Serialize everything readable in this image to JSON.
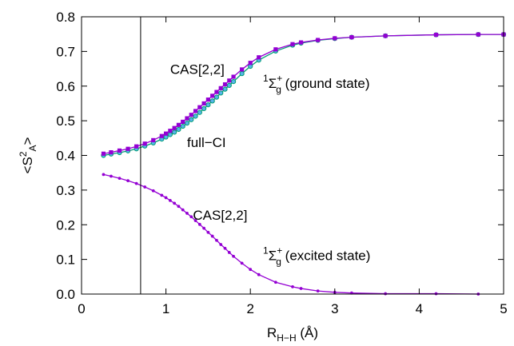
{
  "chart_data": {
    "type": "line",
    "xlabel": {
      "main": "R",
      "sub": "H−H",
      "unit": " (Å)"
    },
    "ylabel": {
      "open": "<S",
      "sup": "2",
      "sub": "A",
      "close": ">"
    },
    "xlim": [
      0,
      5
    ],
    "ylim": [
      0,
      0.8
    ],
    "xticks": [
      0,
      1,
      2,
      3,
      4,
      5
    ],
    "xtick_labels": [
      "0",
      "1",
      "2",
      "3",
      "4",
      "5"
    ],
    "yticks": [
      0,
      0.1,
      0.2,
      0.3,
      0.4,
      0.5,
      0.6,
      0.7,
      0.8
    ],
    "ytick_labels": [
      "0.0",
      "0.1",
      "0.2",
      "0.3",
      "0.4",
      "0.5",
      "0.6",
      "0.7",
      "0.8"
    ],
    "grid": false,
    "vertical_line_x": 0.7,
    "colors": {
      "cas": "#9400d3",
      "fullci": "#009e73",
      "fullci_marker": "#56b4e9"
    },
    "annotations": [
      {
        "id": "cas-ground",
        "text": "CAS[2,2]",
        "x": 1.05,
        "y": 0.635
      },
      {
        "id": "fullci-ground",
        "text": "full−CI",
        "x": 1.25,
        "y": 0.424
      },
      {
        "id": "cas-excited",
        "text": "CAS[2,2]",
        "x": 1.32,
        "y": 0.214
      },
      {
        "id": "ground-state",
        "pre": "1",
        "sym": "Σ",
        "sup": "+",
        "sub": "g",
        "text": " (ground state)",
        "x": 2.15,
        "y": 0.595
      },
      {
        "id": "excited-state",
        "pre": "1",
        "sym": "Σ",
        "sup": "+",
        "sub": "g",
        "text": " (excited state)",
        "x": 2.15,
        "y": 0.098
      }
    ],
    "series": [
      {
        "id": "cas-ground",
        "marker": "square",
        "x": [
          0.26,
          0.35,
          0.45,
          0.55,
          0.65,
          0.75,
          0.85,
          0.95,
          1.0,
          1.05,
          1.1,
          1.15,
          1.2,
          1.25,
          1.3,
          1.35,
          1.4,
          1.45,
          1.5,
          1.55,
          1.6,
          1.65,
          1.7,
          1.75,
          1.8,
          1.9,
          2.0,
          2.1,
          2.3,
          2.5,
          2.6,
          2.8,
          3.0,
          3.2,
          3.6,
          4.2,
          4.7,
          5.0
        ],
        "y": [
          0.405,
          0.409,
          0.414,
          0.419,
          0.426,
          0.434,
          0.444,
          0.456,
          0.463,
          0.471,
          0.479,
          0.488,
          0.497,
          0.507,
          0.517,
          0.528,
          0.539,
          0.55,
          0.561,
          0.572,
          0.583,
          0.594,
          0.605,
          0.616,
          0.627,
          0.648,
          0.667,
          0.683,
          0.706,
          0.721,
          0.726,
          0.733,
          0.738,
          0.741,
          0.745,
          0.748,
          0.749,
          0.749
        ]
      },
      {
        "id": "fullci-ground",
        "marker": "circle",
        "x": [
          0.26,
          0.35,
          0.45,
          0.55,
          0.65,
          0.75,
          0.85,
          0.95,
          1.0,
          1.05,
          1.1,
          1.15,
          1.2,
          1.25,
          1.3,
          1.35,
          1.4,
          1.45,
          1.5,
          1.55,
          1.6,
          1.65,
          1.7,
          1.75,
          1.8,
          1.9,
          2.0,
          2.1,
          2.3,
          2.5,
          2.6,
          2.8,
          3.0,
          3.2,
          3.6,
          4.2,
          4.7,
          5.0
        ],
        "y": [
          0.4,
          0.404,
          0.408,
          0.413,
          0.419,
          0.427,
          0.436,
          0.447,
          0.453,
          0.46,
          0.467,
          0.475,
          0.484,
          0.493,
          0.503,
          0.513,
          0.524,
          0.535,
          0.546,
          0.557,
          0.568,
          0.58,
          0.591,
          0.602,
          0.613,
          0.636,
          0.657,
          0.675,
          0.701,
          0.718,
          0.724,
          0.732,
          0.737,
          0.741,
          0.745,
          0.748,
          0.749,
          0.749
        ]
      },
      {
        "id": "cas-excited",
        "marker": "dot",
        "x": [
          0.26,
          0.35,
          0.45,
          0.55,
          0.65,
          0.75,
          0.85,
          0.95,
          1.0,
          1.05,
          1.1,
          1.15,
          1.2,
          1.25,
          1.3,
          1.35,
          1.4,
          1.45,
          1.5,
          1.55,
          1.6,
          1.65,
          1.7,
          1.75,
          1.8,
          1.9,
          2.0,
          2.1,
          2.3,
          2.5,
          2.6,
          2.8,
          3.0,
          3.2,
          3.6,
          4.2,
          4.7
        ],
        "y": [
          0.345,
          0.34,
          0.334,
          0.327,
          0.319,
          0.309,
          0.298,
          0.285,
          0.278,
          0.27,
          0.262,
          0.253,
          0.243,
          0.233,
          0.223,
          0.212,
          0.201,
          0.19,
          0.178,
          0.167,
          0.155,
          0.143,
          0.132,
          0.12,
          0.109,
          0.089,
          0.071,
          0.056,
          0.034,
          0.021,
          0.016,
          0.009,
          0.005,
          0.003,
          0.001,
          0.001,
          0.0
        ]
      }
    ]
  }
}
